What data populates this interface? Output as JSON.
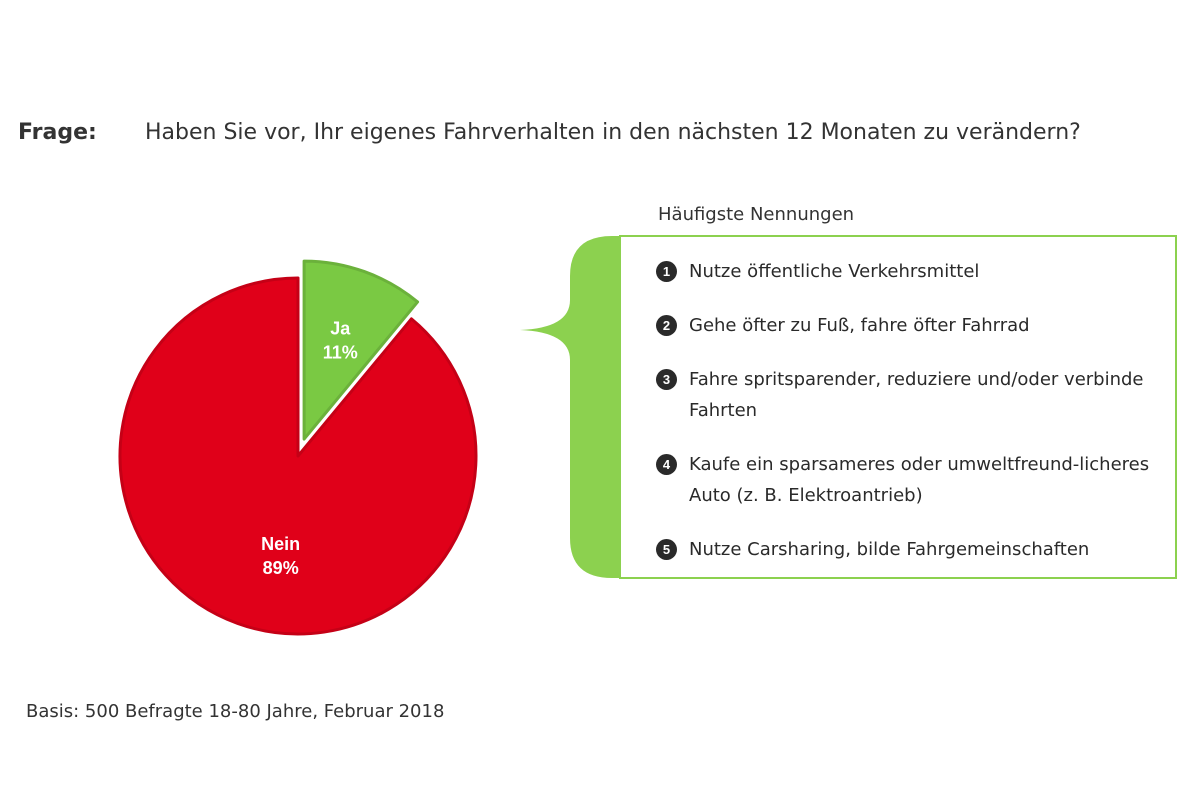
{
  "question": {
    "label": "Frage:",
    "text": "Haben Sie vor, Ihr eigenes Fahrverhalten in den nächsten 12 Monaten zu verändern?"
  },
  "chart_data": {
    "type": "pie",
    "slices": [
      {
        "label": "Ja",
        "value": 11,
        "value_label": "11%",
        "color": "#7ac943",
        "exploded": true
      },
      {
        "label": "Nein",
        "value": 89,
        "value_label": "89%",
        "color": "#e00019",
        "exploded": false
      }
    ]
  },
  "list": {
    "heading": "Häufigste Nennungen",
    "border_color": "#8cd14f",
    "items": [
      {
        "number": "1",
        "text": "Nutze öffentliche Verkehrsmittel"
      },
      {
        "number": "2",
        "text": "Gehe öfter zu Fuß, fahre öfter Fahrrad"
      },
      {
        "number": "3",
        "text": "Fahre spritsparender, reduziere und/oder verbinde Fahrten"
      },
      {
        "number": "4",
        "text": "Kaufe ein sparsameres oder umweltfreund-licheres Auto (z. B. Elektroantrieb)"
      },
      {
        "number": "5",
        "text": "Nutze Carsharing, bilde Fahrgemeinschaften"
      }
    ]
  },
  "footnote": "Basis: 500 Befragte 18-80 Jahre, Februar 2018"
}
